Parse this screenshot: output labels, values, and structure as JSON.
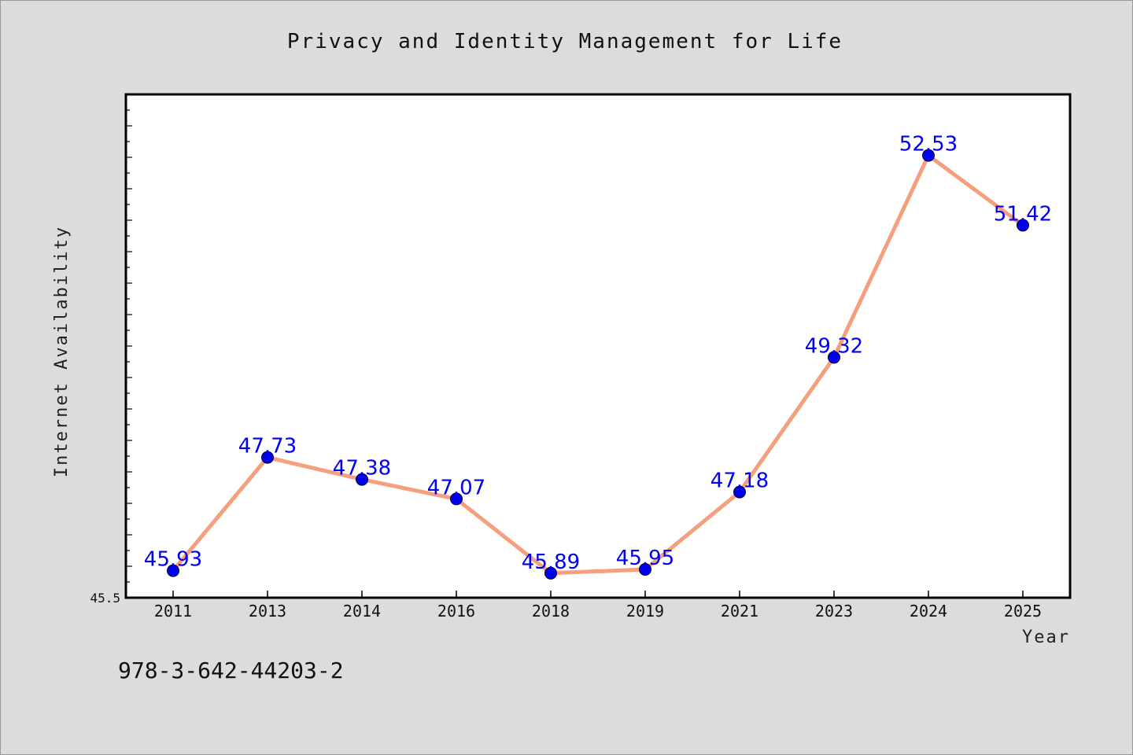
{
  "chart_data": {
    "type": "line",
    "title": "Privacy and Identity Management for Life",
    "xlabel": "Year",
    "ylabel": "Internet Availability",
    "categories": [
      "2011",
      "2013",
      "2014",
      "2016",
      "2018",
      "2019",
      "2021",
      "2023",
      "2024",
      "2025"
    ],
    "values": [
      45.93,
      47.73,
      47.38,
      47.07,
      45.89,
      45.95,
      47.18,
      49.32,
      52.53,
      51.42
    ],
    "data_labels": [
      "45.93",
      "47.73",
      "47.38",
      "47.07",
      "45.89",
      "45.95",
      "47.18",
      "49.32",
      "52.53",
      "51.42"
    ],
    "ylim": [
      45.5,
      53.5
    ],
    "ytick_labels": [
      "45.5"
    ],
    "grid": false,
    "legend": "none",
    "colors": {
      "line": "#f4a07f",
      "marker": "#0000ee",
      "label": "#0000ee",
      "plot_bg": "#ffffff",
      "page_bg": "#dcdcdc"
    }
  },
  "footnote": "978-3-642-44203-2"
}
